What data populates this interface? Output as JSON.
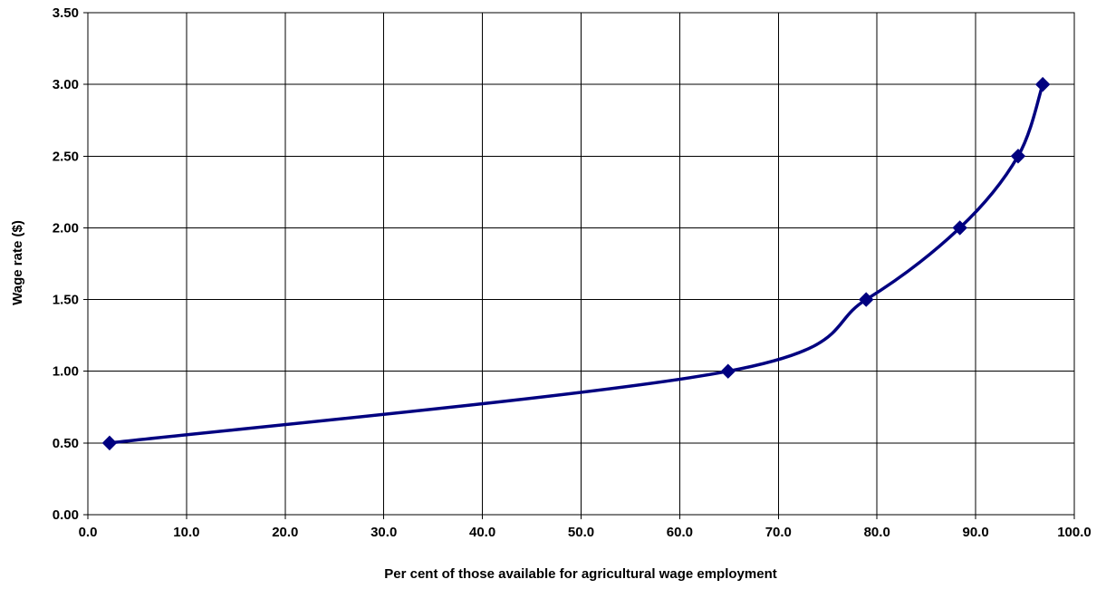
{
  "chart_data": {
    "type": "line",
    "title": "",
    "xlabel": "Per cent of those available for agricultural wage employment",
    "ylabel": "Wage rate ($)",
    "xlim": [
      0,
      100
    ],
    "ylim": [
      0,
      3.5
    ],
    "x_ticks": [
      "0.0",
      "10.0",
      "20.0",
      "30.0",
      "40.0",
      "50.0",
      "60.0",
      "70.0",
      "80.0",
      "90.0",
      "100.0"
    ],
    "y_ticks": [
      "0.00",
      "0.50",
      "1.00",
      "1.50",
      "2.00",
      "2.50",
      "3.00",
      "3.50"
    ],
    "grid": true,
    "smooth": true,
    "marker": "diamond",
    "series": [
      {
        "color": "#000080",
        "points": [
          {
            "x": 2.2,
            "y": 0.5
          },
          {
            "x": 64.9,
            "y": 1.0
          },
          {
            "x": 78.9,
            "y": 1.5
          },
          {
            "x": 88.4,
            "y": 2.0
          },
          {
            "x": 94.3,
            "y": 2.5
          },
          {
            "x": 96.8,
            "y": 3.0
          }
        ]
      }
    ]
  }
}
